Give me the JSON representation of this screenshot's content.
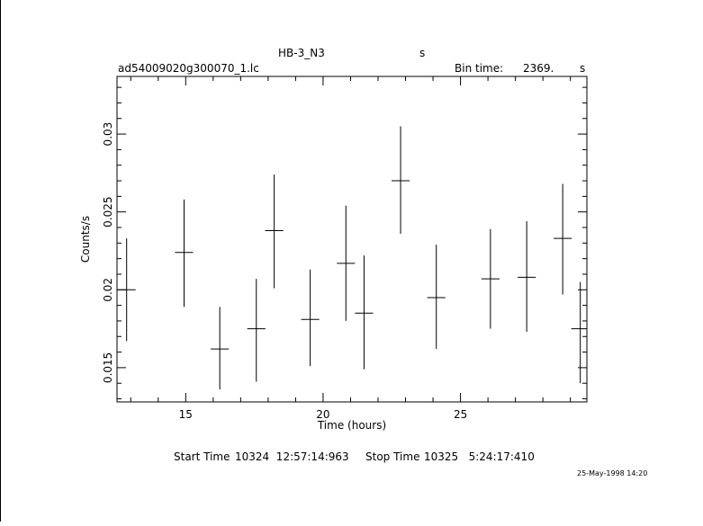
{
  "header": {
    "object": "HB-3_N3",
    "object_unit": "s",
    "file": "ad54009020g300070_1.lc",
    "bin_label": "Bin time:",
    "bin_value": "2369.",
    "bin_unit": "s"
  },
  "footer": {
    "start_label": "Start Time",
    "start_value": "10324  12:57:14:963",
    "stop_label": "Stop Time",
    "stop_value": "10325   5:24:17:410",
    "timestamp": "25-May-1998 14:20"
  },
  "chart_data": {
    "type": "scatter",
    "xlabel": "Time (hours)",
    "ylabel": "Counts/s",
    "xlim": [
      12.5,
      29.6
    ],
    "ylim": [
      0.0128,
      0.0337
    ],
    "x_ticks": [
      15,
      20,
      25
    ],
    "x_tick_labels": [
      "15",
      "20",
      "25"
    ],
    "y_ticks": [
      0.015,
      0.02,
      0.025,
      0.03
    ],
    "y_tick_labels": [
      "0.015",
      "0.02",
      "0.025",
      "0.03"
    ],
    "grid": false,
    "points": [
      {
        "x": 12.85,
        "xerr": 0.33,
        "y": 0.02,
        "ylo": 0.0167,
        "yhi": 0.0233
      },
      {
        "x": 14.94,
        "xerr": 0.33,
        "y": 0.0224,
        "ylo": 0.0189,
        "yhi": 0.0258
      },
      {
        "x": 16.24,
        "xerr": 0.33,
        "y": 0.0162,
        "ylo": 0.0136,
        "yhi": 0.0189
      },
      {
        "x": 17.57,
        "xerr": 0.33,
        "y": 0.0175,
        "ylo": 0.0141,
        "yhi": 0.0207
      },
      {
        "x": 18.22,
        "xerr": 0.33,
        "y": 0.0238,
        "ylo": 0.0201,
        "yhi": 0.0274
      },
      {
        "x": 19.53,
        "xerr": 0.33,
        "y": 0.0181,
        "ylo": 0.0151,
        "yhi": 0.0213
      },
      {
        "x": 20.83,
        "xerr": 0.33,
        "y": 0.0217,
        "ylo": 0.018,
        "yhi": 0.0254
      },
      {
        "x": 21.49,
        "xerr": 0.33,
        "y": 0.0185,
        "ylo": 0.0149,
        "yhi": 0.0222
      },
      {
        "x": 22.82,
        "xerr": 0.33,
        "y": 0.027,
        "ylo": 0.0236,
        "yhi": 0.0305
      },
      {
        "x": 24.12,
        "xerr": 0.33,
        "y": 0.0195,
        "ylo": 0.0162,
        "yhi": 0.0229
      },
      {
        "x": 26.09,
        "xerr": 0.33,
        "y": 0.0207,
        "ylo": 0.0175,
        "yhi": 0.0239
      },
      {
        "x": 27.41,
        "xerr": 0.33,
        "y": 0.0208,
        "ylo": 0.0173,
        "yhi": 0.0244
      },
      {
        "x": 28.72,
        "xerr": 0.33,
        "y": 0.0233,
        "ylo": 0.0197,
        "yhi": 0.0268
      },
      {
        "x": 29.36,
        "xerr": 0.33,
        "y": 0.0175,
        "ylo": 0.014,
        "yhi": 0.0205
      }
    ]
  }
}
